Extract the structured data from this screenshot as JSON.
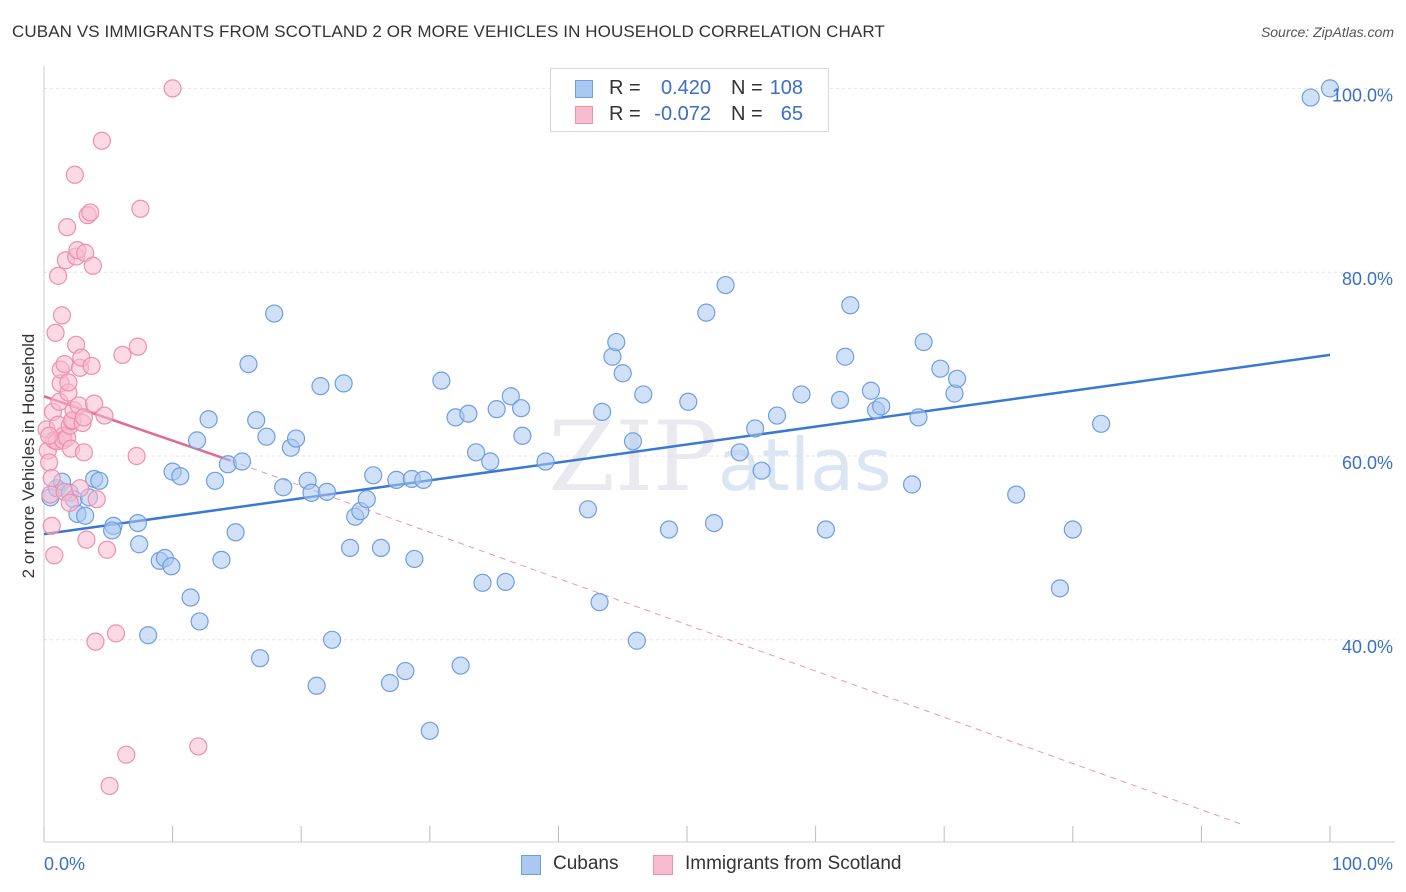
{
  "title": "CUBAN VS IMMIGRANTS FROM SCOTLAND 2 OR MORE VEHICLES IN HOUSEHOLD CORRELATION CHART",
  "source": "Source: ZipAtlas.com",
  "watermark": "ZIPatlas",
  "legend_stats": [
    {
      "r_label": "R =",
      "r_value": "0.420",
      "n_label": "N =",
      "n_value": "108"
    },
    {
      "r_label": "R =",
      "r_value": "-0.072",
      "n_label": "N =",
      "n_value": "65"
    }
  ],
  "colors": {
    "blue_fill": "#aac8f0",
    "blue_stroke": "#6f9ee0",
    "blue_line": "#3a78d4",
    "pink_fill": "#f8bcd0",
    "pink_stroke": "#ee8fae",
    "pink_line": "#e26a92",
    "tick_text": "#3a6fc4",
    "grid": "#e4e4e4"
  },
  "chart_data": {
    "type": "scatter",
    "title": "CUBAN VS IMMIGRANTS FROM SCOTLAND 2 OR MORE VEHICLES IN HOUSEHOLD CORRELATION CHART",
    "xlabel": "",
    "ylabel": "2 or more Vehicles in Household",
    "xlim": [
      0,
      100
    ],
    "ylim": [
      18,
      102
    ],
    "x_tick_labels": [
      "0.0%",
      "100.0%"
    ],
    "y_tick_labels": [
      "100.0%",
      "80.0%",
      "60.0%",
      "40.0%"
    ],
    "y_ticks": [
      100,
      80,
      60,
      40
    ],
    "grid": true,
    "legend_placement": "bottom",
    "series": [
      {
        "name": "Cubans",
        "color": "#6f9ee0",
        "trend": {
          "x": [
            0,
            100
          ],
          "y": [
            51.5,
            71.0
          ],
          "style": "solid"
        },
        "points": [
          [
            0.5,
            55.5
          ],
          [
            1.0,
            56.5
          ],
          [
            1.4,
            57.2
          ],
          [
            2.0,
            56.0
          ],
          [
            2.3,
            55.3
          ],
          [
            2.6,
            53.7
          ],
          [
            3.2,
            53.5
          ],
          [
            3.5,
            55.5
          ],
          [
            3.9,
            57.5
          ],
          [
            4.3,
            57.3
          ],
          [
            5.4,
            52.4
          ],
          [
            7.3,
            52.7
          ],
          [
            5.3,
            51.9
          ],
          [
            7.4,
            50.4
          ],
          [
            8.1,
            40.5
          ],
          [
            9.0,
            48.6
          ],
          [
            9.4,
            48.9
          ],
          [
            9.9,
            48.0
          ],
          [
            10.0,
            58.3
          ],
          [
            10.6,
            57.8
          ],
          [
            11.4,
            44.6
          ],
          [
            11.9,
            61.7
          ],
          [
            12.1,
            42.0
          ],
          [
            12.8,
            64.0
          ],
          [
            13.3,
            57.3
          ],
          [
            13.8,
            48.7
          ],
          [
            14.3,
            59.1
          ],
          [
            14.9,
            51.7
          ],
          [
            15.4,
            59.4
          ],
          [
            15.9,
            70.0
          ],
          [
            16.5,
            63.9
          ],
          [
            16.8,
            38.0
          ],
          [
            17.3,
            62.1
          ],
          [
            17.9,
            75.5
          ],
          [
            18.6,
            56.6
          ],
          [
            19.2,
            60.9
          ],
          [
            19.6,
            61.9
          ],
          [
            20.5,
            57.3
          ],
          [
            20.8,
            56.0
          ],
          [
            21.2,
            35.0
          ],
          [
            21.5,
            67.6
          ],
          [
            22.0,
            56.1
          ],
          [
            22.4,
            40.0
          ],
          [
            23.3,
            67.9
          ],
          [
            23.8,
            50.0
          ],
          [
            24.2,
            53.4
          ],
          [
            24.6,
            54.0
          ],
          [
            25.1,
            55.3
          ],
          [
            25.6,
            57.9
          ],
          [
            26.2,
            50.0
          ],
          [
            26.9,
            35.3
          ],
          [
            27.4,
            57.4
          ],
          [
            28.1,
            36.6
          ],
          [
            28.6,
            57.5
          ],
          [
            28.8,
            48.8
          ],
          [
            29.5,
            57.4
          ],
          [
            30.0,
            30.1
          ],
          [
            30.9,
            68.2
          ],
          [
            32.0,
            64.2
          ],
          [
            32.4,
            37.2
          ],
          [
            33.0,
            64.6
          ],
          [
            33.6,
            60.4
          ],
          [
            34.1,
            46.2
          ],
          [
            34.7,
            59.4
          ],
          [
            35.2,
            65.1
          ],
          [
            35.9,
            46.3
          ],
          [
            36.3,
            66.5
          ],
          [
            37.1,
            65.2
          ],
          [
            37.2,
            62.2
          ],
          [
            39.0,
            59.4
          ],
          [
            42.3,
            54.2
          ],
          [
            43.2,
            44.1
          ],
          [
            43.4,
            64.8
          ],
          [
            44.2,
            70.8
          ],
          [
            44.5,
            72.4
          ],
          [
            45.0,
            69.0
          ],
          [
            45.8,
            61.6
          ],
          [
            46.1,
            39.9
          ],
          [
            46.6,
            66.7
          ],
          [
            48.6,
            52.0
          ],
          [
            50.1,
            65.9
          ],
          [
            51.5,
            75.6
          ],
          [
            52.1,
            52.7
          ],
          [
            53.0,
            78.6
          ],
          [
            54.1,
            60.4
          ],
          [
            55.3,
            63.0
          ],
          [
            55.8,
            58.4
          ],
          [
            57.0,
            64.4
          ],
          [
            58.9,
            66.7
          ],
          [
            60.8,
            52.0
          ],
          [
            61.9,
            66.1
          ],
          [
            62.3,
            70.8
          ],
          [
            62.7,
            76.4
          ],
          [
            64.3,
            67.1
          ],
          [
            64.7,
            65.0
          ],
          [
            65.1,
            65.4
          ],
          [
            67.5,
            56.9
          ],
          [
            68.0,
            64.2
          ],
          [
            68.4,
            72.4
          ],
          [
            69.7,
            69.5
          ],
          [
            70.8,
            66.8
          ],
          [
            71.0,
            68.4
          ],
          [
            75.6,
            55.8
          ],
          [
            79.0,
            45.6
          ],
          [
            80.0,
            52.0
          ],
          [
            82.2,
            63.5
          ],
          [
            100.0,
            100.0
          ],
          [
            98.5,
            99.0
          ]
        ]
      },
      {
        "name": "Immigrants from Scotland",
        "color": "#ee8fae",
        "trend": {
          "x": [
            0,
            14.5
          ],
          "y": [
            66.5,
            59.5
          ],
          "style": "solid",
          "extended": {
            "x": [
              14.5,
              93
            ],
            "y": [
              59.5,
              20
            ]
          }
        },
        "points": [
          [
            0.2,
            62.9
          ],
          [
            0.3,
            60.6
          ],
          [
            0.4,
            59.3
          ],
          [
            0.5,
            55.8
          ],
          [
            0.6,
            52.4
          ],
          [
            0.7,
            64.8
          ],
          [
            0.8,
            61.7
          ],
          [
            0.8,
            49.2
          ],
          [
            0.9,
            73.4
          ],
          [
            1.0,
            61.6
          ],
          [
            1.1,
            63.4
          ],
          [
            1.1,
            79.6
          ],
          [
            1.2,
            65.9
          ],
          [
            1.3,
            67.9
          ],
          [
            1.3,
            69.4
          ],
          [
            1.4,
            75.3
          ],
          [
            1.5,
            62.2
          ],
          [
            1.5,
            61.7
          ],
          [
            1.6,
            56.1
          ],
          [
            1.6,
            70.0
          ],
          [
            1.7,
            81.3
          ],
          [
            1.8,
            84.9
          ],
          [
            1.8,
            62.0
          ],
          [
            1.9,
            66.9
          ],
          [
            1.9,
            68.0
          ],
          [
            2.0,
            54.9
          ],
          [
            2.0,
            63.3
          ],
          [
            2.1,
            60.8
          ],
          [
            2.2,
            63.8
          ],
          [
            2.2,
            63.9
          ],
          [
            2.3,
            65.0
          ],
          [
            2.4,
            90.6
          ],
          [
            2.5,
            81.7
          ],
          [
            2.5,
            72.1
          ],
          [
            2.6,
            82.4
          ],
          [
            2.7,
            65.5
          ],
          [
            2.8,
            56.5
          ],
          [
            2.8,
            69.6
          ],
          [
            2.9,
            70.7
          ],
          [
            3.0,
            63.6
          ],
          [
            3.1,
            60.4
          ],
          [
            3.1,
            64.2
          ],
          [
            3.2,
            82.1
          ],
          [
            3.3,
            50.9
          ],
          [
            3.4,
            86.2
          ],
          [
            3.6,
            86.5
          ],
          [
            3.7,
            69.8
          ],
          [
            3.8,
            80.7
          ],
          [
            3.9,
            65.7
          ],
          [
            4.0,
            39.8
          ],
          [
            4.1,
            55.3
          ],
          [
            4.5,
            94.3
          ],
          [
            4.7,
            64.4
          ],
          [
            4.9,
            49.8
          ],
          [
            5.1,
            24.1
          ],
          [
            5.6,
            40.7
          ],
          [
            6.1,
            71.0
          ],
          [
            6.4,
            27.5
          ],
          [
            7.2,
            60.0
          ],
          [
            7.3,
            71.9
          ],
          [
            7.5,
            86.9
          ],
          [
            10.0,
            100.0
          ],
          [
            12.0,
            28.4
          ],
          [
            0.4,
            62.2
          ],
          [
            0.6,
            57.6
          ]
        ]
      }
    ]
  },
  "bottom_legend": [
    {
      "label": "Cubans"
    },
    {
      "label": "Immigrants from Scotland"
    }
  ]
}
